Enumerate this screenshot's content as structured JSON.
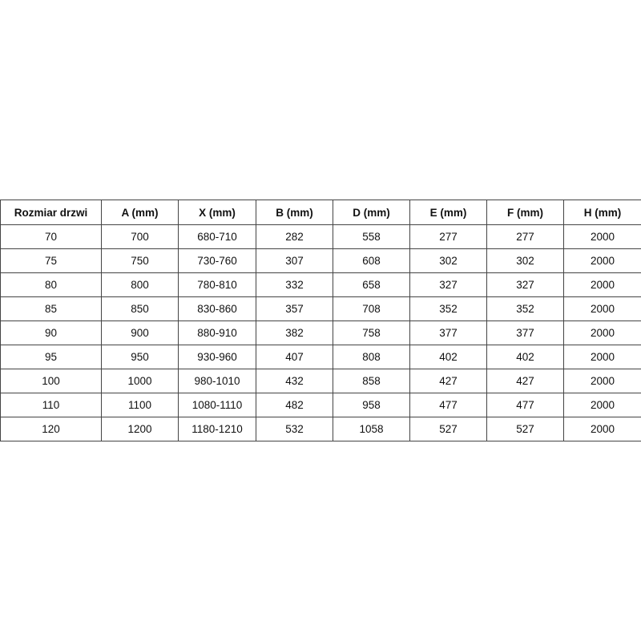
{
  "table": {
    "headers": [
      "Rozmiar drzwi",
      "A (mm)",
      "X (mm)",
      "B (mm)",
      "D (mm)",
      "E (mm)",
      "F (mm)",
      "H (mm)"
    ],
    "rows": [
      [
        "70",
        "700",
        "680-710",
        "282",
        "558",
        "277",
        "277",
        "2000"
      ],
      [
        "75",
        "750",
        "730-760",
        "307",
        "608",
        "302",
        "302",
        "2000"
      ],
      [
        "80",
        "800",
        "780-810",
        "332",
        "658",
        "327",
        "327",
        "2000"
      ],
      [
        "85",
        "850",
        "830-860",
        "357",
        "708",
        "352",
        "352",
        "2000"
      ],
      [
        "90",
        "900",
        "880-910",
        "382",
        "758",
        "377",
        "377",
        "2000"
      ],
      [
        "95",
        "950",
        "930-960",
        "407",
        "808",
        "402",
        "402",
        "2000"
      ],
      [
        "100",
        "1000",
        "980-1010",
        "432",
        "858",
        "427",
        "427",
        "2000"
      ],
      [
        "110",
        "1100",
        "1080-1110",
        "482",
        "958",
        "477",
        "477",
        "2000"
      ],
      [
        "120",
        "1200",
        "1180-1210",
        "532",
        "1058",
        "527",
        "527",
        "2000"
      ]
    ]
  }
}
